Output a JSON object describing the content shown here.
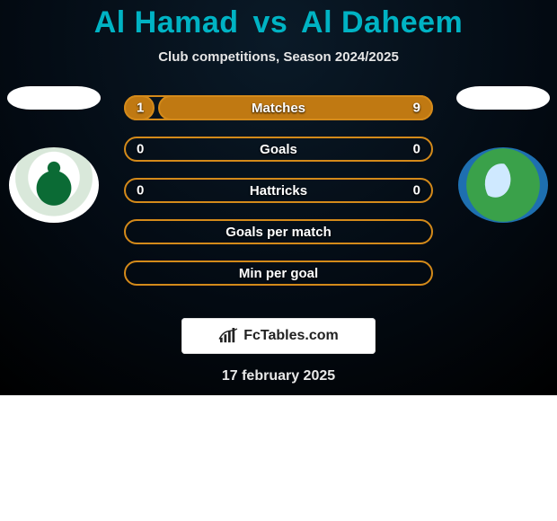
{
  "title_color": "#00b3c4",
  "accent_border": "#d48a1a",
  "accent_fill": "#c07912",
  "header": {
    "left": "Al Hamad",
    "vs": "vs",
    "right": "Al Daheem",
    "subtitle": "Club competitions, Season 2024/2025"
  },
  "bars": [
    {
      "label": "Matches",
      "left": "1",
      "right": "9",
      "left_pct": 10,
      "right_pct": 90
    },
    {
      "label": "Goals",
      "left": "0",
      "right": "0",
      "left_pct": 0,
      "right_pct": 0
    },
    {
      "label": "Hattricks",
      "left": "0",
      "right": "0",
      "left_pct": 0,
      "right_pct": 0
    },
    {
      "label": "Goals per match",
      "left": "",
      "right": "",
      "left_pct": 0,
      "right_pct": 0
    },
    {
      "label": "Min per goal",
      "left": "",
      "right": "",
      "left_pct": 0,
      "right_pct": 0
    }
  ],
  "brand": "FcTables.com",
  "date": "17 february 2025"
}
